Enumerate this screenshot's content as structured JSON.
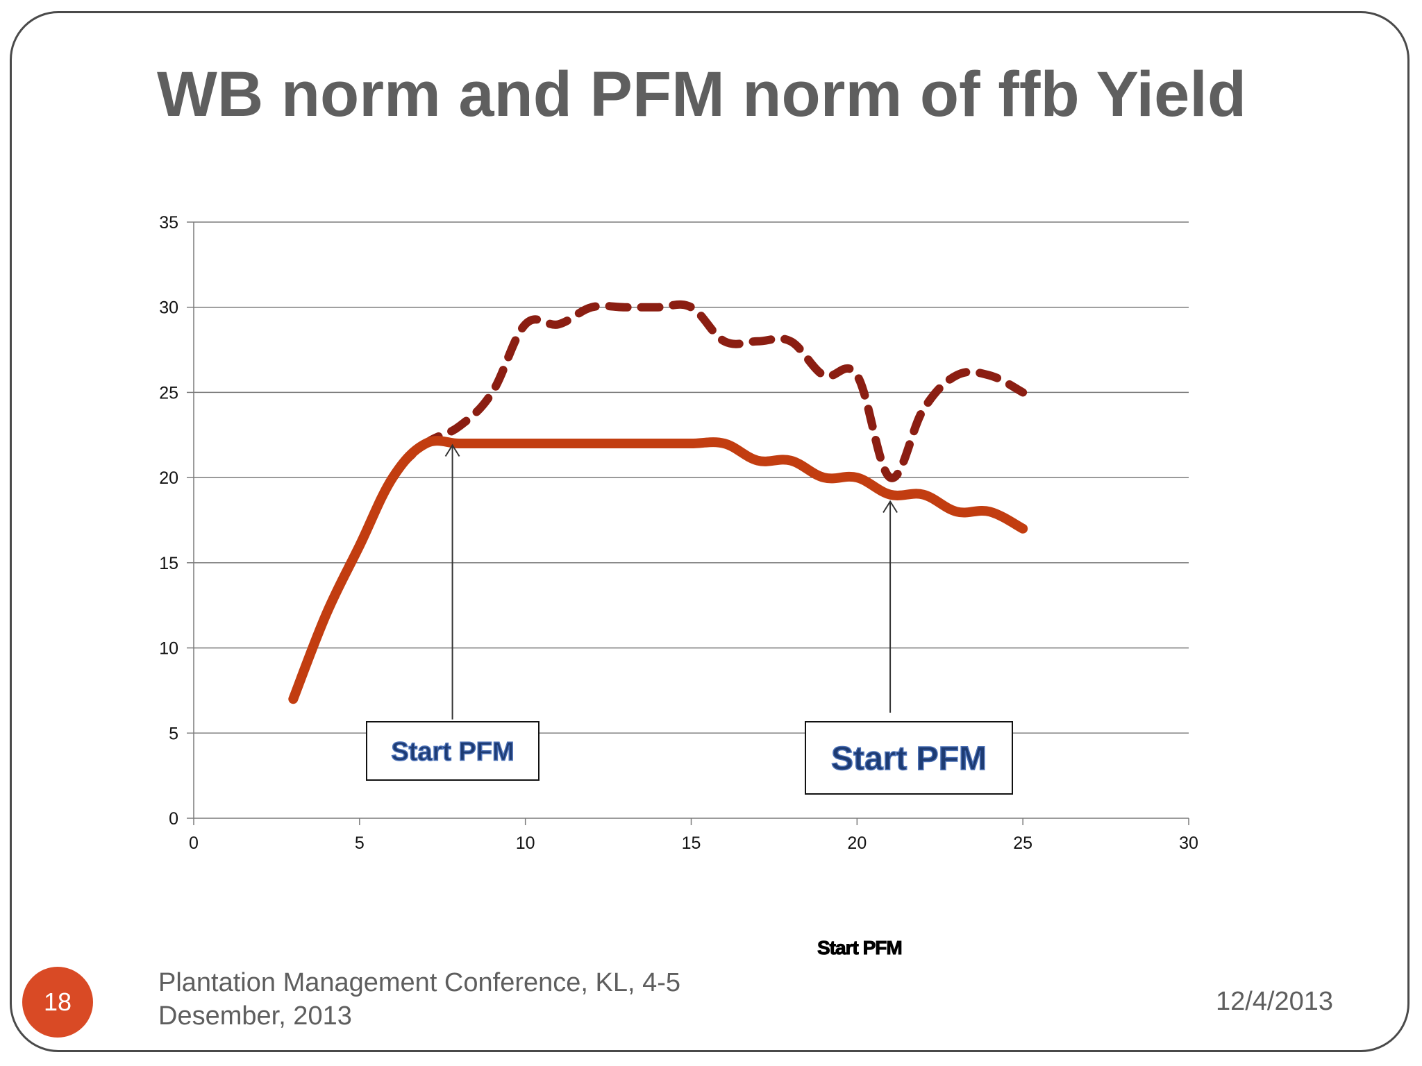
{
  "slide": {
    "title": "WB norm and PFM norm of ffb Yield",
    "footer": "Plantation Management Conference, KL, 4-5 Desember, 2013",
    "date": "12/4/2013",
    "slide_number": "18",
    "bottom_label": "Start PFM",
    "accent_color": "#d94a25"
  },
  "chart_data": {
    "type": "line",
    "title": "",
    "xlabel": "",
    "ylabel": "",
    "xlim": [
      0,
      30
    ],
    "ylim": [
      0,
      35
    ],
    "x_ticks": [
      0,
      5,
      10,
      15,
      20,
      25,
      30
    ],
    "y_ticks": [
      0,
      5,
      10,
      15,
      20,
      25,
      30,
      35
    ],
    "grid": "horizontal",
    "series": [
      {
        "style": "dashed",
        "color": "#8b1e12",
        "points": [
          [
            3,
            7
          ],
          [
            4,
            12
          ],
          [
            5,
            16
          ],
          [
            6,
            20
          ],
          [
            7,
            22
          ],
          [
            8,
            23
          ],
          [
            9,
            25
          ],
          [
            10,
            29
          ],
          [
            11,
            29
          ],
          [
            12,
            30
          ],
          [
            13,
            30
          ],
          [
            14,
            30
          ],
          [
            15,
            30
          ],
          [
            16,
            28
          ],
          [
            17,
            28
          ],
          [
            18,
            28
          ],
          [
            19,
            26
          ],
          [
            20,
            26
          ],
          [
            21,
            20
          ],
          [
            22,
            24
          ],
          [
            23,
            26
          ],
          [
            24,
            26
          ],
          [
            25,
            25
          ]
        ]
      },
      {
        "style": "solid",
        "color": "#c23d10",
        "points": [
          [
            3,
            7
          ],
          [
            4,
            12
          ],
          [
            5,
            16
          ],
          [
            6,
            20
          ],
          [
            7,
            22
          ],
          [
            8,
            22
          ],
          [
            9,
            22
          ],
          [
            10,
            22
          ],
          [
            11,
            22
          ],
          [
            12,
            22
          ],
          [
            13,
            22
          ],
          [
            14,
            22
          ],
          [
            15,
            22
          ],
          [
            16,
            22
          ],
          [
            17,
            21
          ],
          [
            18,
            21
          ],
          [
            19,
            20
          ],
          [
            20,
            20
          ],
          [
            21,
            19
          ],
          [
            22,
            19
          ],
          [
            23,
            18
          ],
          [
            24,
            18
          ],
          [
            25,
            17
          ]
        ]
      }
    ],
    "annotations": [
      {
        "text": "Start PFM",
        "arrow_x": 7.8,
        "arrow_from_y": 5.8,
        "arrow_to_y": 21.9
      },
      {
        "text": "Start PFM",
        "arrow_x": 21.0,
        "arrow_from_y": 6.2,
        "arrow_to_y": 18.6
      }
    ]
  }
}
